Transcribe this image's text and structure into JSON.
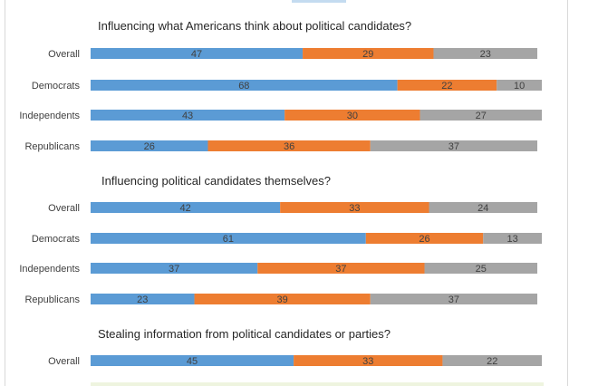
{
  "colors": {
    "Democratic": "#5b9bd5",
    "series2": "#ed7d31",
    "series3": "#a5a5a5"
  },
  "chart_data": [
    {
      "type": "bar",
      "orientation": "horizontal",
      "stacked": true,
      "title": "Influencing what Americans think about political candidates?",
      "categories": [
        "Overall",
        "Democrats",
        "Independents",
        "Republicans"
      ],
      "series": [
        {
          "values": [
            47,
            68,
            43,
            26
          ]
        },
        {
          "values": [
            29,
            22,
            30,
            36
          ]
        },
        {
          "values": [
            23,
            10,
            27,
            37
          ]
        }
      ]
    },
    {
      "type": "bar",
      "orientation": "horizontal",
      "stacked": true,
      "title": "Influencing political candidates themselves?",
      "categories": [
        "Overall",
        "Democrats",
        "Independents",
        "Republicans"
      ],
      "series": [
        {
          "values": [
            42,
            61,
            37,
            23
          ]
        },
        {
          "values": [
            33,
            26,
            37,
            39
          ]
        },
        {
          "values": [
            24,
            13,
            25,
            37
          ]
        }
      ]
    },
    {
      "type": "bar",
      "orientation": "horizontal",
      "stacked": true,
      "title": "Stealing information from political candidates or parties?",
      "categories": [
        "Overall"
      ],
      "series": [
        {
          "values": [
            45
          ]
        },
        {
          "values": [
            33
          ]
        },
        {
          "values": [
            22
          ]
        }
      ]
    }
  ]
}
